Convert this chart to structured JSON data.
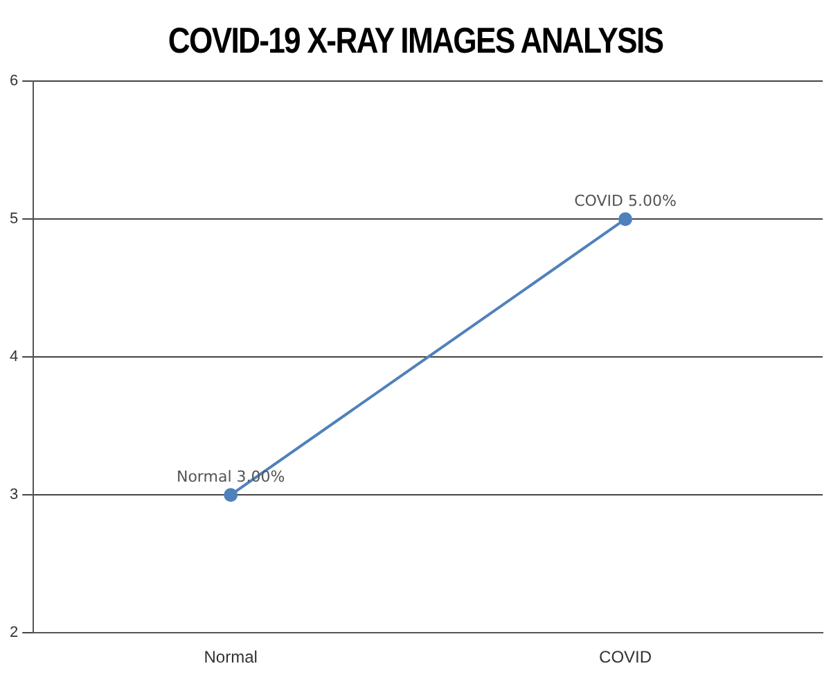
{
  "chart_data": {
    "type": "line",
    "title": "COVID-19 X-RAY IMAGES ANALYSIS",
    "categories": [
      "Normal",
      "COVID"
    ],
    "values": [
      3,
      5
    ],
    "value_labels": [
      "Normal 3.00%",
      "COVID 5.00%"
    ],
    "color": "#4f81bc",
    "ylim": [
      2,
      6
    ],
    "yticks": [
      2,
      3,
      4,
      5,
      6
    ],
    "grid": "y",
    "legend": false,
    "marker": "circle",
    "line_style": "solid"
  }
}
